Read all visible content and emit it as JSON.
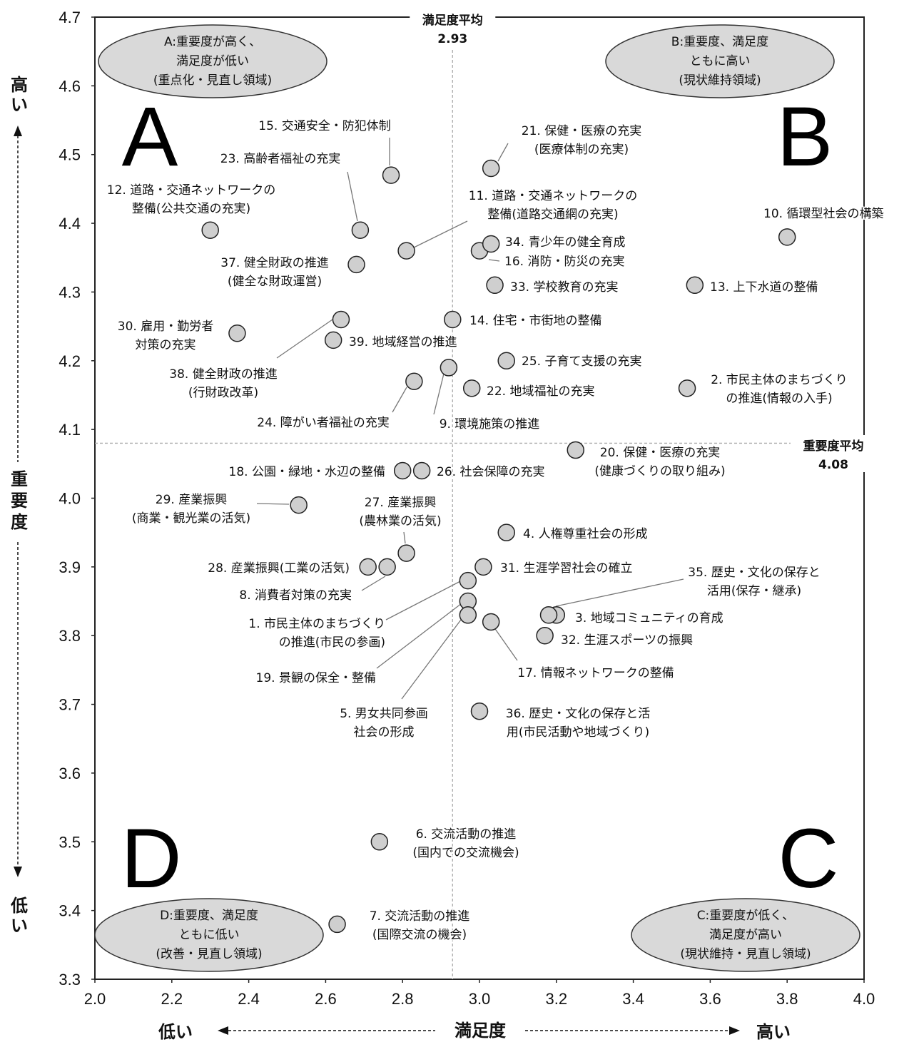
{
  "chart_data": {
    "type": "scatter",
    "xlim": [
      2.0,
      4.0
    ],
    "ylim": [
      3.3,
      4.7
    ],
    "x_ticks": [
      "2.0",
      "2.2",
      "2.4",
      "2.6",
      "2.8",
      "3.0",
      "3.2",
      "3.4",
      "3.6",
      "3.8",
      "4.0"
    ],
    "y_ticks": [
      "3.3",
      "3.4",
      "3.5",
      "3.6",
      "3.7",
      "3.8",
      "3.9",
      "4.0",
      "4.1",
      "4.2",
      "4.3",
      "4.4",
      "4.5",
      "4.6",
      "4.7"
    ],
    "x_axis": {
      "label": "満足度",
      "low": "低い",
      "high": "高い"
    },
    "y_axis": {
      "label": "重要度",
      "low": "低い",
      "high": "高い"
    },
    "x_average": {
      "label": "満足度平均",
      "value": 2.93
    },
    "y_average": {
      "label": "重要度平均",
      "value": 4.08
    },
    "quadrants": [
      {
        "letter": "A",
        "lines": [
          "A:重要度が高く、",
          "満足度が低い",
          "(重点化・見直し領域)"
        ]
      },
      {
        "letter": "B",
        "lines": [
          "B:重要度、満足度",
          "ともに高い",
          "(現状維持領域)"
        ]
      },
      {
        "letter": "C",
        "lines": [
          "C:重要度が低く、",
          "満足度が高い",
          "(現状維持・見直し領域)"
        ]
      },
      {
        "letter": "D",
        "lines": [
          "D:重要度、満足度",
          "ともに低い",
          "(改善・見直し領域)"
        ]
      }
    ],
    "points": [
      {
        "id": 1,
        "x": 2.97,
        "y": 3.85,
        "lines": [
          "1. 市民主体のまちづくり",
          "の推進(市民の参画)"
        ]
      },
      {
        "id": 2,
        "x": 3.54,
        "y": 4.16,
        "lines": [
          "2. 市民主体のまちづくり",
          "の推進(情報の入手)"
        ]
      },
      {
        "id": 3,
        "x": 3.2,
        "y": 3.83,
        "lines": [
          "3. 地域コミュニティの育成"
        ]
      },
      {
        "id": 4,
        "x": 3.07,
        "y": 3.95,
        "lines": [
          "4. 人権尊重社会の形成"
        ]
      },
      {
        "id": 5,
        "x": 2.97,
        "y": 3.83,
        "lines": [
          "5. 男女共同参画",
          "社会の形成"
        ]
      },
      {
        "id": 6,
        "x": 2.74,
        "y": 3.5,
        "lines": [
          "6. 交流活動の推進",
          "(国内での交流機会)"
        ]
      },
      {
        "id": 7,
        "x": 2.63,
        "y": 3.38,
        "lines": [
          "7. 交流活動の推進",
          "(国際交流の機会)"
        ]
      },
      {
        "id": 8,
        "x": 2.76,
        "y": 3.9,
        "lines": [
          "8. 消費者対策の充実"
        ]
      },
      {
        "id": 9,
        "x": 2.92,
        "y": 4.19,
        "lines": [
          "9. 環境施策の推進"
        ]
      },
      {
        "id": 10,
        "x": 3.8,
        "y": 4.38,
        "lines": [
          "10. 循環型社会の構築"
        ]
      },
      {
        "id": 11,
        "x": 2.81,
        "y": 4.36,
        "lines": [
          "11. 道路・交通ネットワークの",
          "整備(道路交通網の充実)"
        ]
      },
      {
        "id": 12,
        "x": 2.3,
        "y": 4.39,
        "lines": [
          "12. 道路・交通ネットワークの",
          "整備(公共交通の充実)"
        ]
      },
      {
        "id": 13,
        "x": 3.56,
        "y": 4.31,
        "lines": [
          "13. 上下水道の整備"
        ]
      },
      {
        "id": 14,
        "x": 2.93,
        "y": 4.26,
        "lines": [
          "14. 住宅・市街地の整備"
        ]
      },
      {
        "id": 15,
        "x": 2.77,
        "y": 4.47,
        "lines": [
          "15. 交通安全・防犯体制"
        ]
      },
      {
        "id": 16,
        "x": 3.0,
        "y": 4.36,
        "lines": [
          "16. 消防・防災の充実"
        ]
      },
      {
        "id": 17,
        "x": 3.03,
        "y": 3.82,
        "lines": [
          "17. 情報ネットワークの整備"
        ]
      },
      {
        "id": 18,
        "x": 2.8,
        "y": 4.04,
        "lines": [
          "18. 公園・緑地・水辺の整備"
        ]
      },
      {
        "id": 19,
        "x": 2.97,
        "y": 3.88,
        "lines": [
          "19. 景観の保全・整備"
        ]
      },
      {
        "id": 20,
        "x": 3.25,
        "y": 4.07,
        "lines": [
          "20. 保健・医療の充実",
          "(健康づくりの取り組み)"
        ]
      },
      {
        "id": 21,
        "x": 3.03,
        "y": 4.48,
        "lines": [
          "21. 保健・医療の充実",
          "(医療体制の充実)"
        ]
      },
      {
        "id": 22,
        "x": 2.98,
        "y": 4.16,
        "lines": [
          "22. 地域福祉の充実"
        ]
      },
      {
        "id": 23,
        "x": 2.69,
        "y": 4.39,
        "lines": [
          "23. 高齢者福祉の充実"
        ]
      },
      {
        "id": 24,
        "x": 2.83,
        "y": 4.17,
        "lines": [
          "24. 障がい者福祉の充実"
        ]
      },
      {
        "id": 25,
        "x": 3.07,
        "y": 4.2,
        "lines": [
          "25. 子育て支援の充実"
        ]
      },
      {
        "id": 26,
        "x": 2.85,
        "y": 4.04,
        "lines": [
          "26. 社会保障の充実"
        ]
      },
      {
        "id": 27,
        "x": 2.81,
        "y": 3.92,
        "lines": [
          "27. 産業振興",
          "(農林業の活気)"
        ]
      },
      {
        "id": 28,
        "x": 2.71,
        "y": 3.9,
        "lines": [
          "28. 産業振興(工業の活気)"
        ]
      },
      {
        "id": 29,
        "x": 2.53,
        "y": 3.99,
        "lines": [
          "29. 産業振興",
          "(商業・観光業の活気)"
        ]
      },
      {
        "id": 30,
        "x": 2.37,
        "y": 4.24,
        "lines": [
          "30. 雇用・勤労者",
          "対策の充実"
        ]
      },
      {
        "id": 31,
        "x": 3.01,
        "y": 3.9,
        "lines": [
          "31. 生涯学習社会の確立"
        ]
      },
      {
        "id": 32,
        "x": 3.17,
        "y": 3.8,
        "lines": [
          "32. 生涯スポーツの振興"
        ]
      },
      {
        "id": 33,
        "x": 3.04,
        "y": 4.31,
        "lines": [
          "33. 学校教育の充実"
        ]
      },
      {
        "id": 34,
        "x": 3.03,
        "y": 4.37,
        "lines": [
          "34. 青少年の健全育成"
        ]
      },
      {
        "id": 35,
        "x": 3.18,
        "y": 3.83,
        "lines": [
          "35. 歴史・文化の保存と",
          "活用(保存・継承)"
        ]
      },
      {
        "id": 36,
        "x": 3.0,
        "y": 3.69,
        "lines": [
          "36. 歴史・文化の保存と活",
          "用(市民活動や地域づくり)"
        ]
      },
      {
        "id": 37,
        "x": 2.68,
        "y": 4.34,
        "lines": [
          "37. 健全財政の推進",
          "(健全な財政運営)"
        ]
      },
      {
        "id": 38,
        "x": 2.64,
        "y": 4.26,
        "lines": [
          "38. 健全財政の推進",
          "(行財政改革)"
        ]
      },
      {
        "id": 39,
        "x": 2.62,
        "y": 4.23,
        "lines": [
          "39. 地域経営の推進"
        ]
      }
    ]
  }
}
